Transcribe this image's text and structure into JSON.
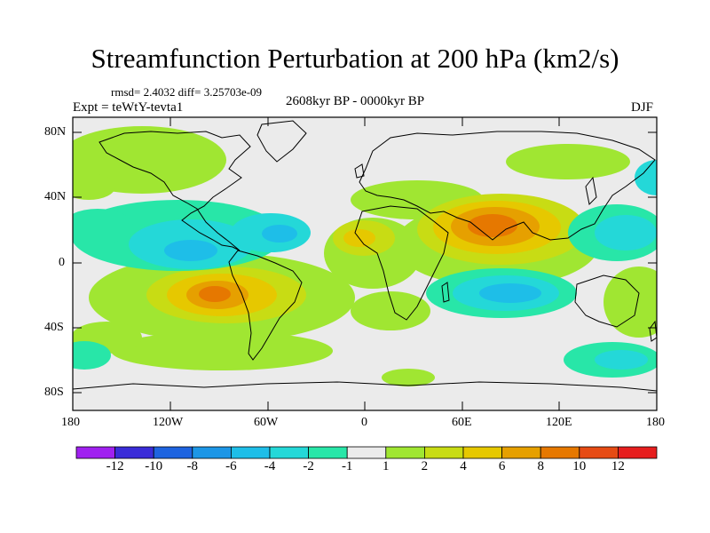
{
  "title": "Streamfunction Perturbation at 200 hPa (km2/s)",
  "stats": {
    "rmsd": "rmsd= 2.4032",
    "diff": "diff= 3.25703e-09"
  },
  "period": "2608kyr BP - 0000kyr BP",
  "experiment": "Expt = teWtY-tevta1",
  "season": "DJF",
  "axes": {
    "y_ticks": [
      "80N",
      "40N",
      "0",
      "40S",
      "80S"
    ],
    "x_ticks": [
      "180",
      "120W",
      "60W",
      "0",
      "60E",
      "120E",
      "180"
    ]
  },
  "colorbar": {
    "colors": [
      "#a020f0",
      "#3a2cd8",
      "#1e64e0",
      "#1c96e6",
      "#1ebee8",
      "#24d8d8",
      "#28e6a8",
      "#ebebeb",
      "#a0e632",
      "#c8dc14",
      "#e6c800",
      "#e6a000",
      "#e67800",
      "#e64b14",
      "#e61e1e"
    ],
    "labels": [
      "-12",
      "-10",
      "-8",
      "-6",
      "-4",
      "-2",
      "-1",
      "1",
      "2",
      "4",
      "6",
      "8",
      "10",
      "12"
    ]
  }
}
